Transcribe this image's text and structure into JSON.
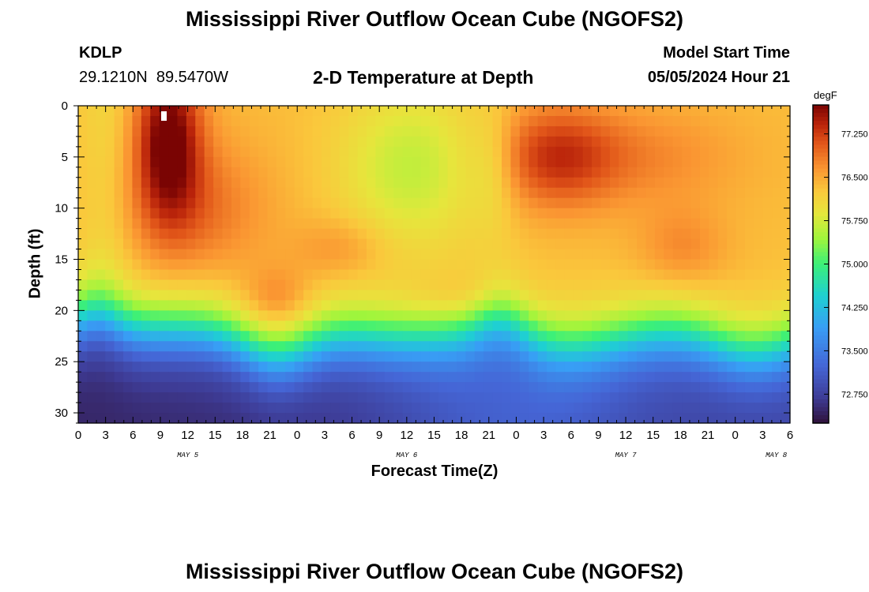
{
  "page": {
    "title_top": "Mississippi River Outflow Ocean Cube (NGOFS2)",
    "title_bottom": "Mississippi River Outflow Ocean Cube (NGOFS2)",
    "station_id": "KDLP",
    "station_coords": "29.1210N  89.5470W",
    "subtitle": "2-D Temperature at Depth",
    "model_start_label": "Model Start Time",
    "model_start_value": "05/05/2024 Hour 21"
  },
  "chart_data": {
    "type": "heatmap",
    "title": "2-D Temperature at Depth",
    "xlabel": "Forecast Time(Z)",
    "ylabel": "Depth (ft)",
    "x_range_hours": [
      0,
      78
    ],
    "ylim": [
      0,
      31
    ],
    "y_ticks": [
      0,
      5,
      10,
      15,
      20,
      25,
      30
    ],
    "x_tick_labels": [
      "0",
      "3",
      "6",
      "9",
      "12",
      "15",
      "18",
      "21",
      "0",
      "3",
      "6",
      "9",
      "12",
      "15",
      "18",
      "21",
      "0",
      "3",
      "6",
      "9",
      "12",
      "15",
      "18",
      "21",
      "0",
      "3",
      "6"
    ],
    "date_labels": [
      {
        "label": "MAY 5",
        "hour": 12
      },
      {
        "label": "MAY 6",
        "hour": 36
      },
      {
        "label": "MAY 7",
        "hour": 60
      },
      {
        "label": "MAY 8",
        "hour": 76.5
      }
    ],
    "colorbar": {
      "unit": "degF",
      "min": 72.25,
      "max": 77.75,
      "ticks": [
        "72.750",
        "73.500",
        "74.250",
        "75.000",
        "75.750",
        "76.500",
        "77.250"
      ],
      "tick_values": [
        72.75,
        73.5,
        74.25,
        75.0,
        75.75,
        76.5,
        77.25
      ]
    },
    "grid_shape": {
      "time_steps": 79,
      "depth_levels": 31
    },
    "surface_temperature_profile": [
      {
        "hour": 0,
        "surface": 76.4,
        "mixed_layer_ft": 16.5
      },
      {
        "hour": 9,
        "surface": 77.7,
        "mixed_layer_ft": 19
      },
      {
        "hour": 21,
        "surface": 76.6,
        "mixed_layer_ft": 21.5
      },
      {
        "hour": 33,
        "surface": 75.9,
        "mixed_layer_ft": 21
      },
      {
        "hour": 45,
        "surface": 76.3,
        "mixed_layer_ft": 20.5
      },
      {
        "hour": 51,
        "surface": 77.2,
        "mixed_layer_ft": 20.5
      },
      {
        "hour": 66,
        "surface": 76.8,
        "mixed_layer_ft": 21
      },
      {
        "hour": 78,
        "surface": 76.3,
        "mixed_layer_ft": 23
      }
    ]
  }
}
